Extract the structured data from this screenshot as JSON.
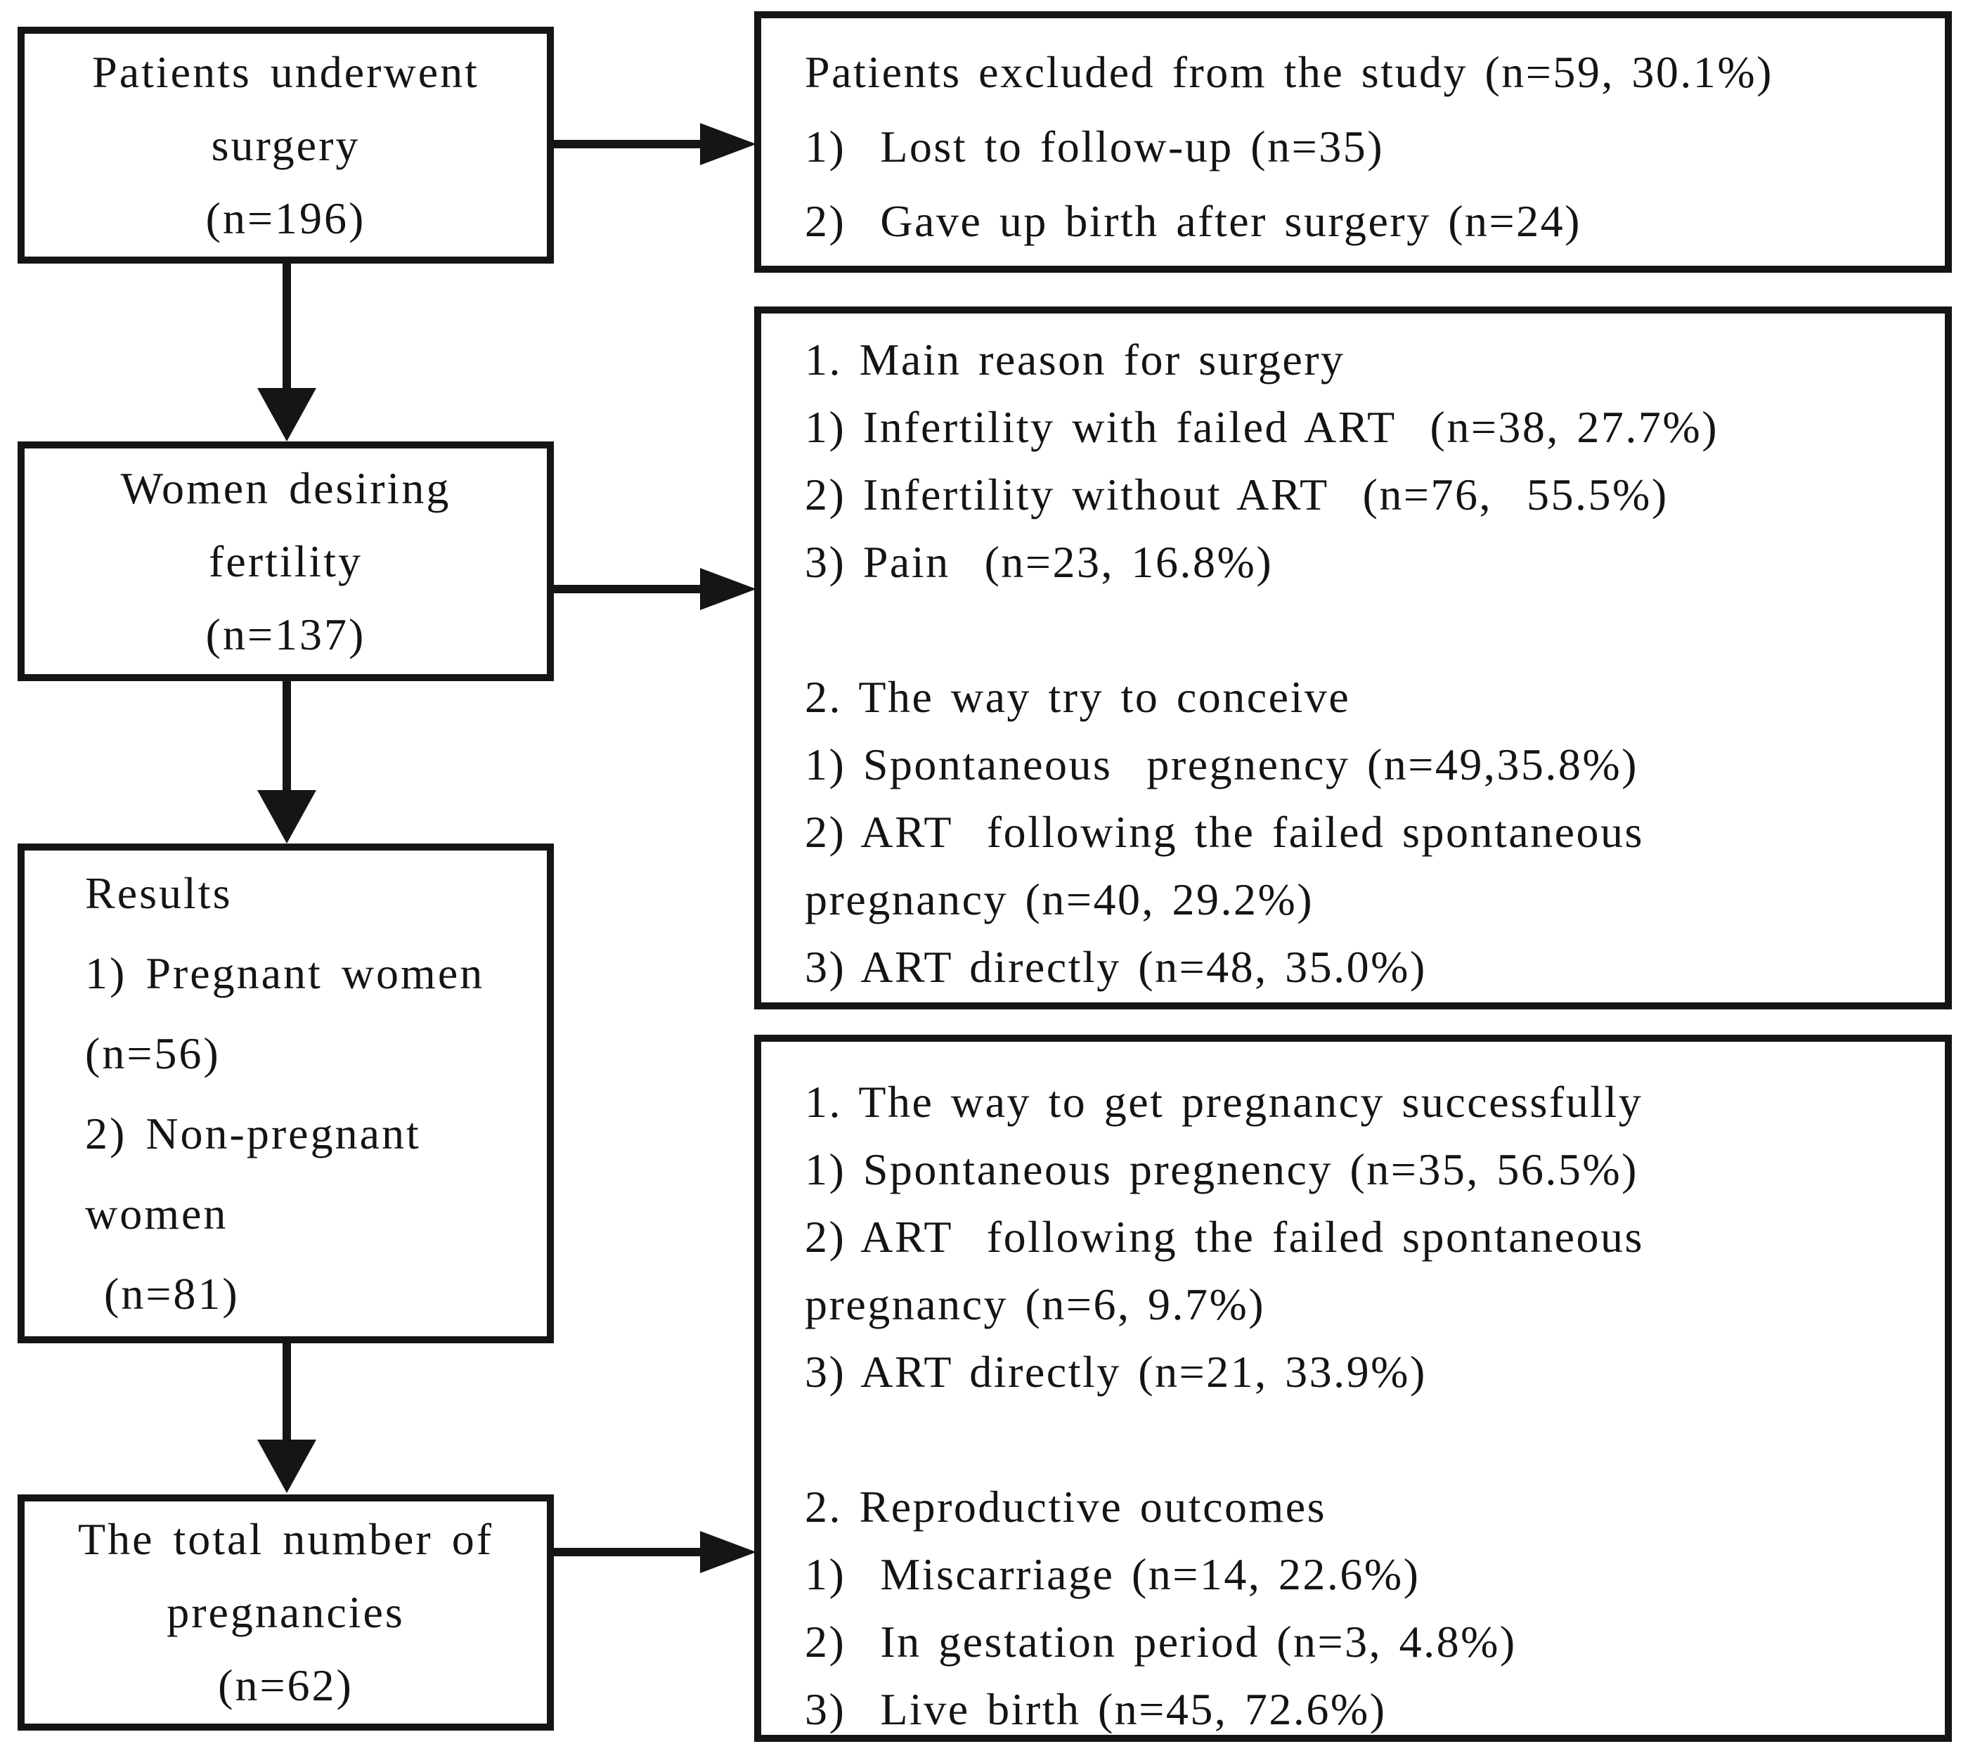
{
  "figure": {
    "background_color": "#ffffff",
    "line_color": "#151515",
    "boxes": {
      "l1": {
        "title": "Patients underwent surgery",
        "lines": [
          "Patients underwent",
          "surgery",
          "(n=196)"
        ]
      },
      "l2": {
        "title": "Women desiring fertility",
        "lines": [
          "Women desiring",
          "fertility",
          "(n=137)"
        ]
      },
      "l3": {
        "title": "Results",
        "lines": [
          "Results",
          "1) Pregnant women",
          "(n=56)",
          "2) Non-pregnant",
          "women",
          " (n=81)"
        ]
      },
      "l4": {
        "title": "The total number of pregnancies",
        "lines": [
          "The total number of",
          "pregnancies",
          "(n=62)"
        ]
      },
      "r1": {
        "title": "Patients excluded from the study",
        "lines": [
          "Patients excluded from the study (n=59, 30.1%)",
          "1)  Lost to follow-up (n=35)",
          "2)  Gave up birth after surgery (n=24)"
        ]
      },
      "r2": {
        "title": "Main reason for surgery / The way try to conceive",
        "lines": [
          "1. Main reason for surgery",
          "1) Infertility with failed ART  (n=38, 27.7%)",
          "2) Infertility without ART  (n=76,  55.5%)",
          "3) Pain  (n=23, 16.8%)",
          "",
          "2. The way try to conceive",
          "1) Spontaneous  pregnency (n=49,35.8%)",
          "2) ART  following the failed spontaneous",
          "pregnancy (n=40, 29.2%)",
          "3) ART directly (n=48, 35.0%)"
        ]
      },
      "r3": {
        "title": "The way to get pregnancy successfully / Reproductive outcomes",
        "lines": [
          "1. The way to get pregnancy successfully",
          "1) Spontaneous pregnency (n=35, 56.5%)",
          "2) ART  following the failed spontaneous",
          "pregnancy (n=6, 9.7%)",
          "3) ART directly (n=21, 33.9%)",
          "",
          "2. Reproductive outcomes",
          "1)  Miscarriage (n=14, 22.6%)",
          "2)  In gestation period (n=3, 4.8%)",
          "3)  Live birth (n=45, 72.6%)"
        ]
      }
    }
  }
}
